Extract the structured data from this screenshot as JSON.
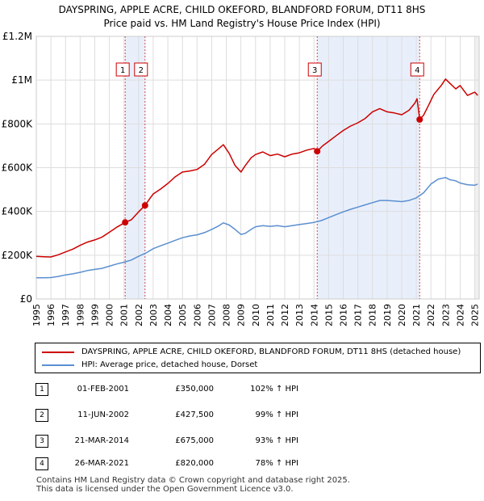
{
  "chart_data": {
    "type": "line",
    "title": "DAYSPRING, APPLE ACRE, CHILD OKEFORD, BLANDFORD FORUM, DT11 8HS",
    "subtitle": "Price paid vs. HM Land Registry's House Price Index (HPI)",
    "xlim": [
      1995,
      2025.3
    ],
    "ylim": [
      0,
      1200000
    ],
    "y_ticks": [
      {
        "value": 0,
        "label": "£0"
      },
      {
        "value": 200000,
        "label": "£200K"
      },
      {
        "value": 400000,
        "label": "£400K"
      },
      {
        "value": 600000,
        "label": "£600K"
      },
      {
        "value": 800000,
        "label": "£800K"
      },
      {
        "value": 1000000,
        "label": "£1M"
      },
      {
        "value": 1200000,
        "label": "£1.2M"
      }
    ],
    "x_ticks": [
      1995,
      1996,
      1997,
      1998,
      1999,
      2000,
      2001,
      2002,
      2003,
      2004,
      2005,
      2006,
      2007,
      2008,
      2009,
      2010,
      2011,
      2012,
      2013,
      2014,
      2015,
      2016,
      2017,
      2018,
      2019,
      2020,
      2021,
      2022,
      2023,
      2024,
      2025
    ],
    "series": [
      {
        "name": "DAYSPRING, APPLE ACRE, CHILD OKEFORD, BLANDFORD FORUM, DT11 8HS (detached house)",
        "color": "#cc0000",
        "x": [
          1995,
          1995.5,
          1996,
          1996.5,
          1997,
          1997.5,
          1998,
          1998.5,
          1999,
          1999.5,
          2000,
          2000.5,
          2001.08,
          2001.5,
          2002,
          2002.44,
          2002.8,
          2003,
          2003.5,
          2004,
          2004.5,
          2005,
          2005.5,
          2006,
          2006.5,
          2007,
          2007.5,
          2007.8,
          2008.2,
          2008.6,
          2009.0,
          2009.3,
          2009.7,
          2010,
          2010.5,
          2011,
          2011.5,
          2012,
          2012.5,
          2013,
          2013.5,
          2014.0,
          2014.22,
          2014.6,
          2015,
          2015.5,
          2016,
          2016.5,
          2017,
          2017.5,
          2018,
          2018.5,
          2019,
          2019.5,
          2020,
          2020.5,
          2020.9,
          2021.05,
          2021.23,
          2021.5,
          2021.8,
          2022.2,
          2022.7,
          2023.0,
          2023.3,
          2023.7,
          2024.0,
          2024.5,
          2025,
          2025.2
        ],
        "values": [
          195000,
          193000,
          192000,
          202000,
          215000,
          228000,
          245000,
          260000,
          270000,
          283000,
          305000,
          328000,
          350000,
          362000,
          398000,
          427500,
          462000,
          480000,
          502000,
          528000,
          558000,
          580000,
          585000,
          592000,
          615000,
          660000,
          688000,
          705000,
          665000,
          610000,
          580000,
          610000,
          645000,
          660000,
          672000,
          655000,
          662000,
          650000,
          662000,
          668000,
          680000,
          688000,
          675000,
          700000,
          720000,
          745000,
          770000,
          790000,
          805000,
          825000,
          855000,
          870000,
          855000,
          850000,
          842000,
          862000,
          895000,
          915000,
          820000,
          840000,
          880000,
          935000,
          975000,
          1005000,
          985000,
          960000,
          975000,
          930000,
          945000,
          930000
        ]
      },
      {
        "name": "HPI: Average price, detached house, Dorset",
        "color": "#5b8fd0",
        "x": [
          1995,
          1995.5,
          1996,
          1996.5,
          1997,
          1997.5,
          1998,
          1998.5,
          1999,
          1999.5,
          2000,
          2000.5,
          2001,
          2001.5,
          2002,
          2002.5,
          2003,
          2003.5,
          2004,
          2004.5,
          2005,
          2005.5,
          2006,
          2006.5,
          2007,
          2007.5,
          2007.8,
          2008.2,
          2008.6,
          2009.0,
          2009.3,
          2009.7,
          2010,
          2010.5,
          2011,
          2011.5,
          2012,
          2012.5,
          2013,
          2013.5,
          2014,
          2014.5,
          2015,
          2015.5,
          2016,
          2016.5,
          2017,
          2017.5,
          2018,
          2018.5,
          2019,
          2019.5,
          2020,
          2020.5,
          2021,
          2021.5,
          2022,
          2022.5,
          2023.0,
          2023.3,
          2023.7,
          2024.0,
          2024.5,
          2025,
          2025.2
        ],
        "values": [
          97000,
          97000,
          98000,
          103000,
          110000,
          115000,
          122000,
          130000,
          135000,
          140000,
          150000,
          160000,
          168000,
          178000,
          195000,
          210000,
          230000,
          243000,
          255000,
          268000,
          280000,
          288000,
          293000,
          303000,
          318000,
          335000,
          348000,
          338000,
          318000,
          295000,
          300000,
          318000,
          330000,
          335000,
          332000,
          335000,
          330000,
          335000,
          340000,
          345000,
          350000,
          358000,
          372000,
          385000,
          398000,
          410000,
          420000,
          430000,
          440000,
          450000,
          450000,
          448000,
          445000,
          450000,
          462000,
          485000,
          525000,
          548000,
          555000,
          545000,
          540000,
          530000,
          522000,
          520000,
          525000
        ]
      }
    ],
    "sales": [
      {
        "num": "1",
        "year": 2001.08,
        "value": 350000,
        "date": "01-FEB-2001",
        "price": "£350,000",
        "hpi": "102% ↑ HPI"
      },
      {
        "num": "2",
        "year": 2002.44,
        "value": 427500,
        "date": "11-JUN-2002",
        "price": "£427,500",
        "hpi": "99% ↑ HPI"
      },
      {
        "num": "3",
        "year": 2014.22,
        "value": 675000,
        "date": "21-MAR-2014",
        "price": "£675,000",
        "hpi": "93% ↑ HPI"
      },
      {
        "num": "4",
        "year": 2021.23,
        "value": 820000,
        "date": "26-MAR-2021",
        "price": "£820,000",
        "hpi": "78% ↑ HPI"
      }
    ],
    "shaded_ranges": [
      [
        2001.08,
        2002.44
      ],
      [
        2014.22,
        2021.23
      ]
    ]
  },
  "legend": {
    "property_label": "DAYSPRING, APPLE ACRE, CHILD OKEFORD, BLANDFORD FORUM, DT11 8HS (detached house)",
    "hpi_label": "HPI: Average price, detached house, Dorset"
  },
  "footer": {
    "line1": "Contains HM Land Registry data © Crown copyright and database right 2025.",
    "line2": "This data is licensed under the Open Government Licence v3.0."
  }
}
